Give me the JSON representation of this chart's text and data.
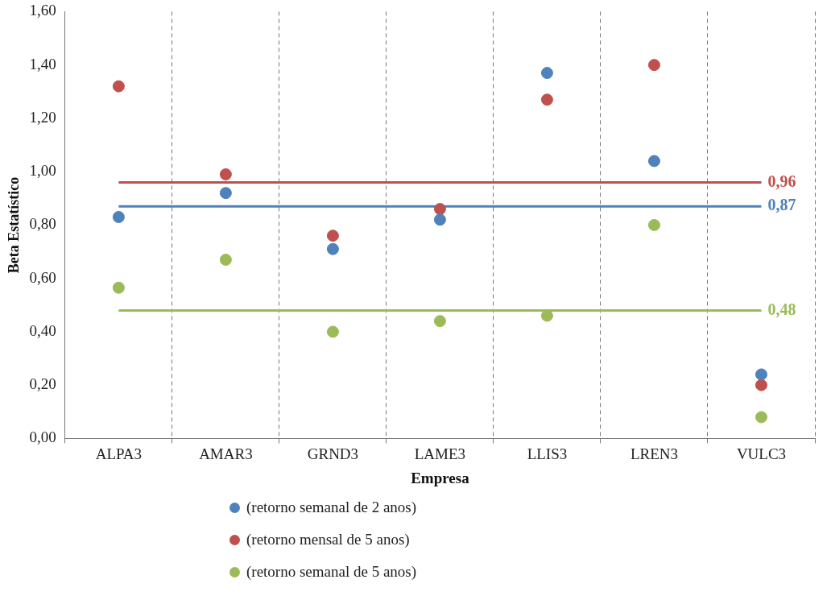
{
  "chart_data": {
    "type": "scatter",
    "xlabel": "Empresa",
    "ylabel": "Beta Estatístico",
    "categories": [
      "ALPA3",
      "AMAR3",
      "GRND3",
      "LAME3",
      "LLIS3",
      "LREN3",
      "VULC3"
    ],
    "series": [
      {
        "name": "(retorno semanal de 2 anos)",
        "color": "#4f81bd",
        "values": [
          0.83,
          0.92,
          0.71,
          0.82,
          1.37,
          1.04,
          0.24
        ]
      },
      {
        "name": "(retorno mensal de 5 anos)",
        "color": "#c0504d",
        "values": [
          1.32,
          0.99,
          0.76,
          0.86,
          1.27,
          1.4,
          0.2
        ]
      },
      {
        "name": "(retorno semanal de 5 anos)",
        "color": "#9bbb59",
        "values": [
          0.565,
          0.67,
          0.4,
          0.44,
          0.46,
          0.8,
          0.08
        ]
      }
    ],
    "ylim": [
      0,
      1.6
    ],
    "yticks": [
      {
        "value": 0,
        "label": "0,00"
      },
      {
        "value": 0.2,
        "label": "0,20"
      },
      {
        "value": 0.4,
        "label": "0,40"
      },
      {
        "value": 0.6,
        "label": "0,60"
      },
      {
        "value": 0.8,
        "label": "0,80"
      },
      {
        "value": 1.0,
        "label": "1,00"
      },
      {
        "value": 1.2,
        "label": "1,20"
      },
      {
        "value": 1.4,
        "label": "1,40"
      },
      {
        "value": 1.6,
        "label": "1,60"
      }
    ],
    "ref_lines": [
      {
        "axis": "y",
        "value": 0.96,
        "label": "0,96",
        "color": "#c0504d"
      },
      {
        "axis": "y",
        "value": 0.87,
        "label": "0,87",
        "color": "#4f81bd"
      },
      {
        "axis": "y",
        "value": 0.48,
        "label": "0,48",
        "color": "#9bbb59"
      }
    ],
    "grid": "x",
    "legend": "bottom",
    "marker": "circle"
  }
}
